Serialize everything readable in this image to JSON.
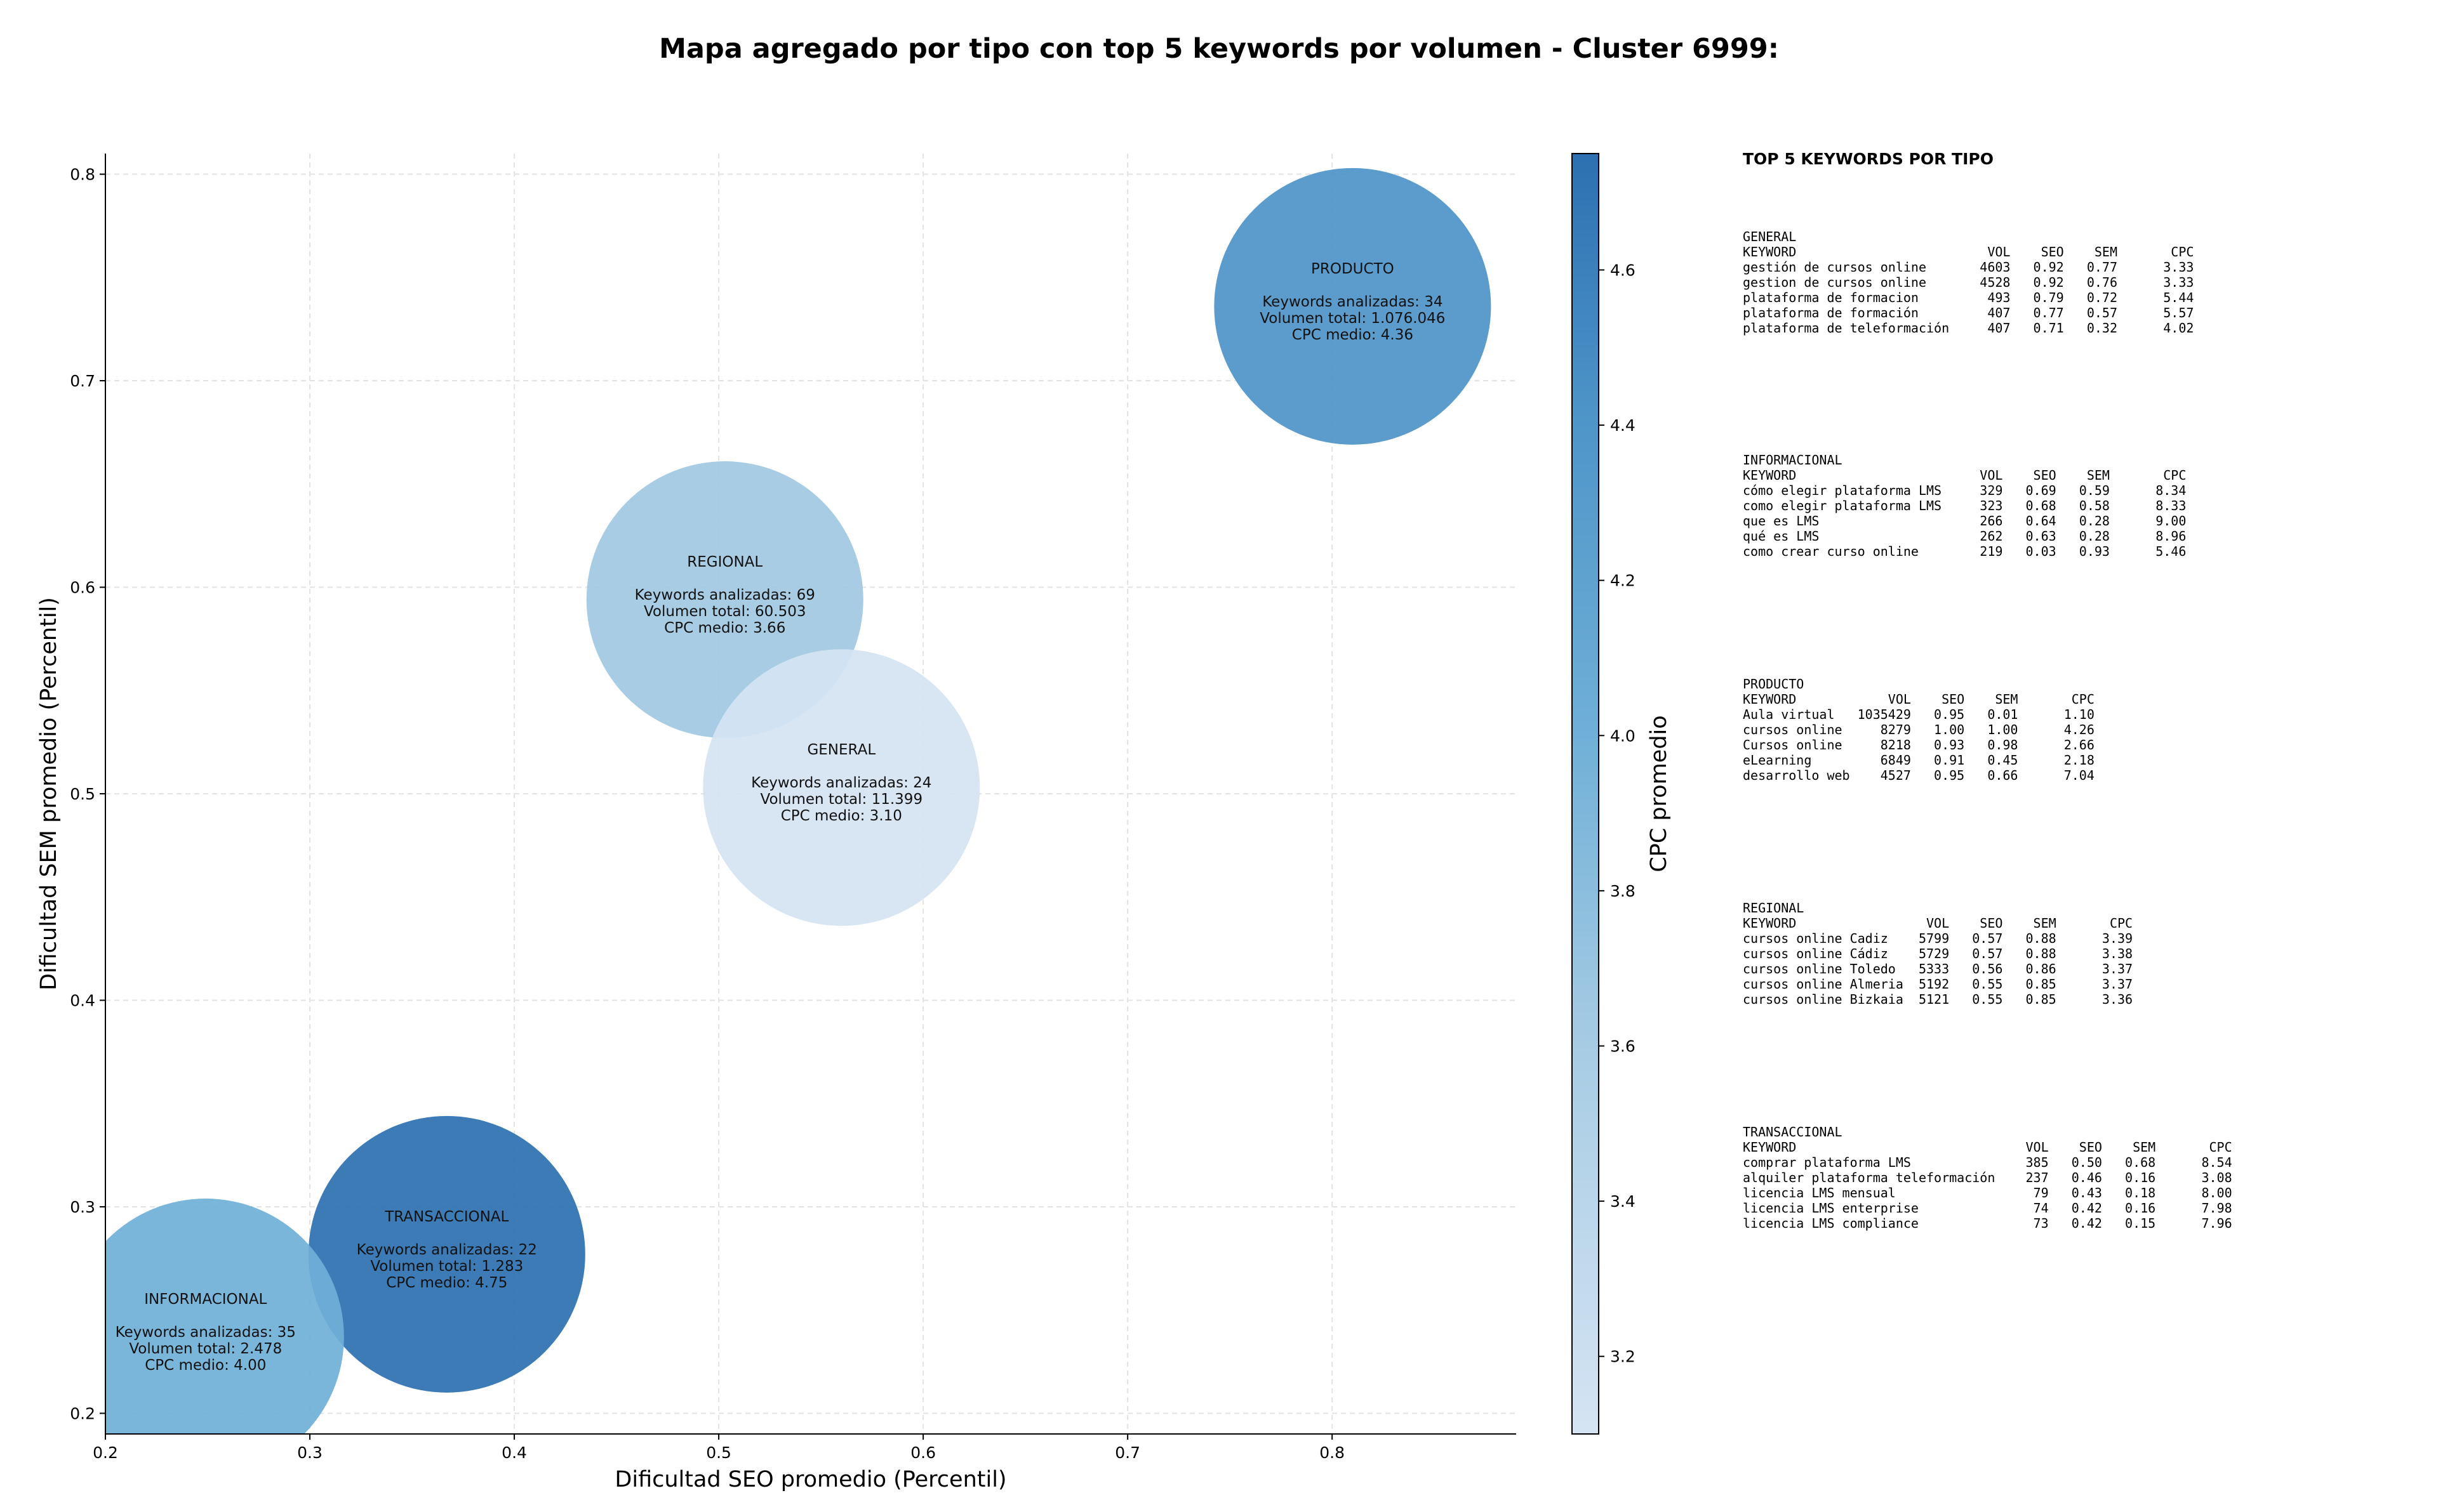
{
  "title": "Mapa agregado por tipo con top 5 keywords por volumen - Cluster 6999:",
  "chart_data": {
    "type": "scatter",
    "title": "Mapa agregado por tipo con top 5 keywords por volumen - Cluster 6999:",
    "xlabel": "Dificultad SEO promedio (Percentil)",
    "ylabel": "Dificultad SEM promedio (Percentil)",
    "xlim": [
      0.2,
      0.89
    ],
    "ylim": [
      0.19,
      0.81
    ],
    "xticks": [
      "0.2",
      "0.3",
      "0.4",
      "0.5",
      "0.6",
      "0.7",
      "0.8"
    ],
    "yticks": [
      "0.2",
      "0.3",
      "0.4",
      "0.5",
      "0.6",
      "0.7",
      "0.8"
    ],
    "grid": true,
    "colorbar": {
      "label": "CPC promedio",
      "min": 3.1,
      "max": 4.75,
      "ticks": [
        "3.2",
        "3.4",
        "3.6",
        "3.8",
        "4.0",
        "4.2",
        "4.4",
        "4.6"
      ],
      "color_low": "#cfe0f0",
      "color_high": "#2b6cb0"
    },
    "bubbles": [
      {
        "name": "PRODUCTO",
        "x": 0.81,
        "y": 0.736,
        "lines": [
          "Keywords analizadas: 34",
          "Volumen total: 1.076.046",
          "CPC medio: 4.36"
        ],
        "cpc": 4.36,
        "color": "#4d94c8"
      },
      {
        "name": "REGIONAL",
        "x": 0.503,
        "y": 0.594,
        "lines": [
          "Keywords analizadas: 69",
          "Volumen total: 60.503",
          "CPC medio: 3.66"
        ],
        "cpc": 3.66,
        "color": "#9fc8e1"
      },
      {
        "name": "GENERAL",
        "x": 0.56,
        "y": 0.503,
        "lines": [
          "Keywords analizadas: 24",
          "Volumen total: 11.399",
          "CPC medio: 3.10"
        ],
        "cpc": 3.1,
        "color": "#d5e4f3"
      },
      {
        "name": "TRANSACCIONAL",
        "x": 0.367,
        "y": 0.277,
        "lines": [
          "Keywords analizadas: 22",
          "Volumen total: 1.283",
          "CPC medio: 4.75"
        ],
        "cpc": 4.75,
        "color": "#2d70b1"
      },
      {
        "name": "INFORMACIONAL",
        "x": 0.249,
        "y": 0.237,
        "lines": [
          "Keywords analizadas: 35",
          "Volumen total: 2.478",
          "CPC medio: 4.00"
        ],
        "cpc": 4.0,
        "color": "#6fafd7"
      }
    ]
  },
  "top5": {
    "heading": "TOP 5 KEYWORDS POR TIPO",
    "blocks": [
      {
        "name": "general",
        "lines": [
          "GENERAL",
          "KEYWORD                         VOL    SEO    SEM       CPC",
          "gestión de cursos online       4603   0.92   0.77      3.33",
          "gestion de cursos online       4528   0.92   0.76      3.33",
          "plataforma de formacion         493   0.79   0.72      5.44",
          "plataforma de formación         407   0.77   0.57      5.57",
          "plataforma de teleformación     407   0.71   0.32      4.02"
        ]
      },
      {
        "name": "informacional",
        "lines": [
          "INFORMACIONAL",
          "KEYWORD                        VOL    SEO    SEM       CPC",
          "cómo elegir plataforma LMS     329   0.69   0.59      8.34",
          "como elegir plataforma LMS     323   0.68   0.58      8.33",
          "que es LMS                     266   0.64   0.28      9.00",
          "qué es LMS                     262   0.63   0.28      8.96",
          "como crear curso online        219   0.03   0.93      5.46"
        ]
      },
      {
        "name": "producto",
        "lines": [
          "PRODUCTO",
          "KEYWORD            VOL    SEO    SEM       CPC",
          "Aula virtual   1035429   0.95   0.01      1.10",
          "cursos online     8279   1.00   1.00      4.26",
          "Cursos online     8218   0.93   0.98      2.66",
          "eLearning         6849   0.91   0.45      2.18",
          "desarrollo web    4527   0.95   0.66      7.04"
        ]
      },
      {
        "name": "regional",
        "lines": [
          "REGIONAL",
          "KEYWORD                 VOL    SEO    SEM       CPC",
          "cursos online Cadiz    5799   0.57   0.88      3.39",
          "cursos online Cádiz    5729   0.57   0.88      3.38",
          "cursos online Toledo   5333   0.56   0.86      3.37",
          "cursos online Almeria  5192   0.55   0.85      3.37",
          "cursos online Bizkaia  5121   0.55   0.85      3.36"
        ]
      },
      {
        "name": "transaccional",
        "lines": [
          "TRANSACCIONAL",
          "KEYWORD                              VOL    SEO    SEM       CPC",
          "comprar plataforma LMS               385   0.50   0.68      8.54",
          "alquiler plataforma teleformación    237   0.46   0.16      3.08",
          "licencia LMS mensual                  79   0.43   0.18      8.00",
          "licencia LMS enterprise               74   0.42   0.16      7.98",
          "licencia LMS compliance               73   0.42   0.15      7.96"
        ]
      }
    ]
  }
}
